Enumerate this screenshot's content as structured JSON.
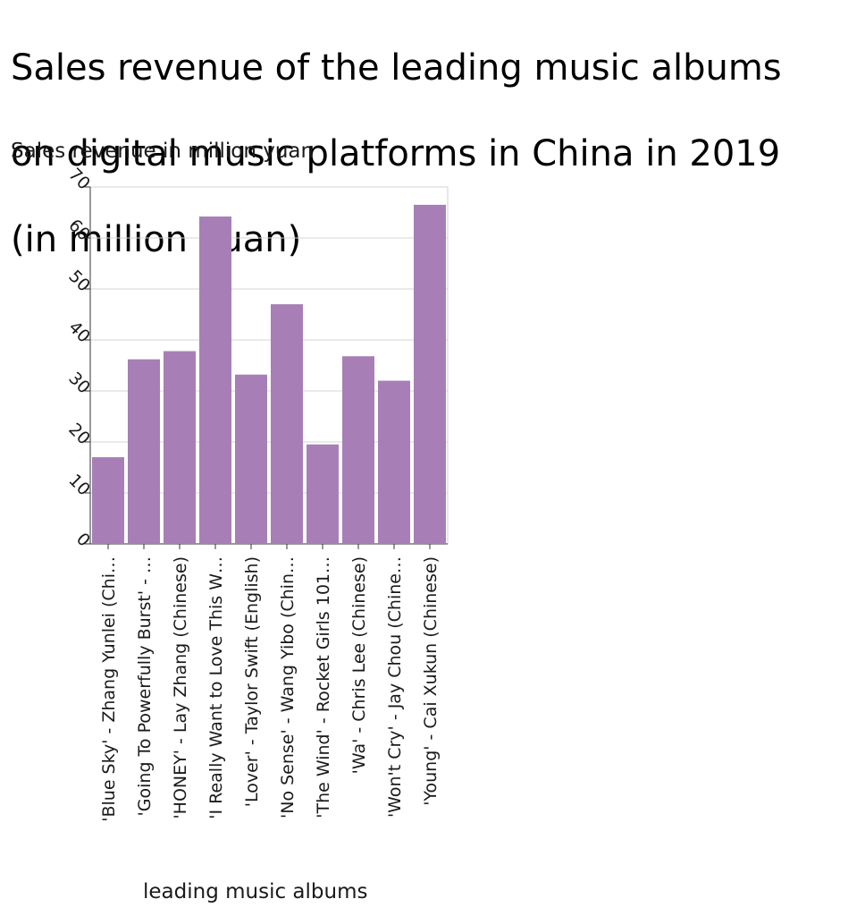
{
  "chart_data": {
    "type": "bar",
    "title": "Sales revenue of the leading music albums on digital music platforms in China in 2019 (in million yuan)",
    "title_lines": [
      "Sales revenue of the leading music albums",
      "on digital music platforms in China in 2019",
      "(in million yuan)"
    ],
    "ylabel": "Sales revenue in million yuan",
    "xlabel": "leading music albums",
    "ylim": [
      0,
      70
    ],
    "yticks": [
      0,
      10,
      20,
      30,
      40,
      50,
      60,
      70
    ],
    "grid": true,
    "bar_color": "#a77fb6",
    "categories": [
      "'Blue Sky' - Zhang Yunlei (Chi…",
      "'Going To Powerfully Burst' - …",
      "'HONEY' - Lay Zhang (Chinese)",
      "'I Really Want to Love This W…",
      "'Lover' - Taylor Swift (English)",
      "'No Sense' - Wang Yibo (Chin…",
      "'The Wind' - Rocket Girls 101…",
      "'Wa' - Chris Lee (Chinese)",
      "'Won't Cry' - Jay Chou (Chine…",
      "'Young' - Cai Xukun (Chinese)"
    ],
    "values": [
      17,
      36.2,
      37.8,
      64.2,
      33.2,
      47,
      19.5,
      36.8,
      32,
      66.5
    ]
  }
}
